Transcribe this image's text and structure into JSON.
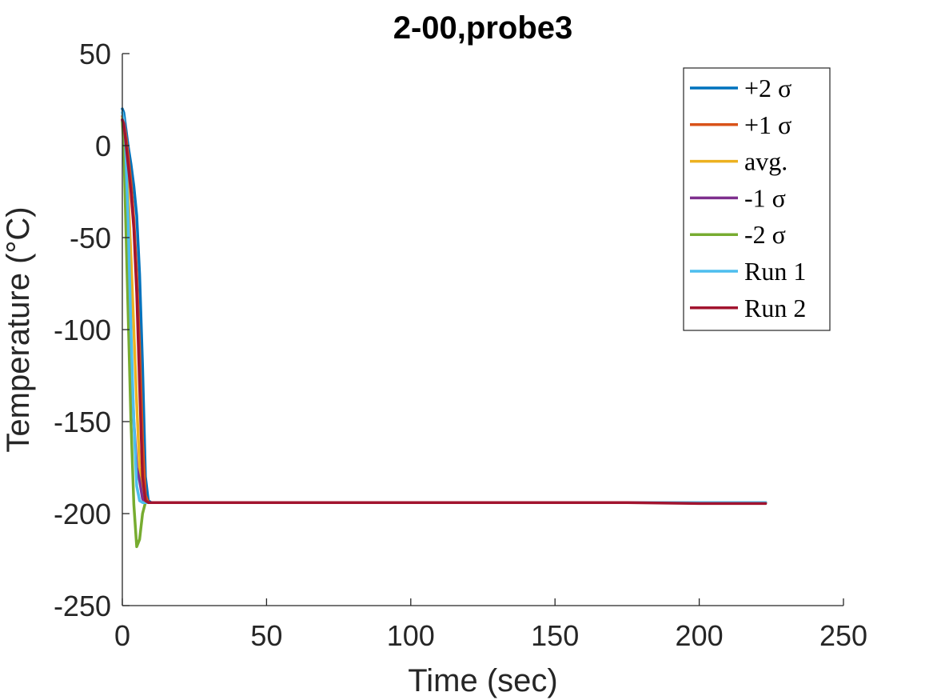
{
  "chart_data": {
    "type": "line",
    "title": "2-00,probe3",
    "xlabel": "Time (sec)",
    "ylabel": "Temperature (°C)",
    "xlim": [
      0,
      250
    ],
    "ylim": [
      -250,
      50
    ],
    "xticks": [
      0,
      50,
      100,
      150,
      200,
      250
    ],
    "yticks": [
      -250,
      -200,
      -150,
      -100,
      -50,
      0,
      50
    ],
    "grid": false,
    "legend_placement": "top-right",
    "series": [
      {
        "name": "+2 σ",
        "color": "#0072BD",
        "x": [
          0,
          0.5,
          1,
          2,
          3,
          4,
          5,
          6,
          7,
          8,
          9,
          10,
          20,
          50,
          100,
          150,
          200,
          223
        ],
        "y": [
          20,
          18,
          12,
          0,
          -10,
          -22,
          -38,
          -70,
          -120,
          -180,
          -193,
          -194,
          -194,
          -194,
          -194,
          -194,
          -194,
          -194
        ]
      },
      {
        "name": "+1 σ",
        "color": "#D95319",
        "x": [
          0,
          0.5,
          1,
          2,
          3,
          4,
          5,
          6,
          7,
          8,
          9,
          10,
          20,
          50,
          100,
          150,
          200,
          223
        ],
        "y": [
          16,
          14,
          8,
          -5,
          -20,
          -40,
          -70,
          -110,
          -160,
          -190,
          -194,
          -194,
          -194,
          -194,
          -194,
          -194,
          -194,
          -194
        ]
      },
      {
        "name": "avg.",
        "color": "#EDB120",
        "x": [
          0,
          0.5,
          1,
          2,
          3,
          4,
          5,
          6,
          7,
          8,
          9,
          10,
          20,
          50,
          100,
          150,
          200,
          223
        ],
        "y": [
          15,
          10,
          0,
          -25,
          -60,
          -100,
          -140,
          -175,
          -190,
          -194,
          -194,
          -194,
          -194,
          -194,
          -194,
          -194,
          -194,
          -194
        ]
      },
      {
        "name": "-1 σ",
        "color": "#7E2F8E",
        "x": [
          0,
          0.5,
          1,
          2,
          3,
          4,
          5,
          6,
          7,
          8,
          9,
          10,
          20,
          50,
          100,
          150,
          200,
          223
        ],
        "y": [
          14,
          5,
          -15,
          -60,
          -110,
          -150,
          -175,
          -182,
          -192,
          -194,
          -194,
          -194,
          -194,
          -194,
          -194,
          -194,
          -194,
          -194
        ]
      },
      {
        "name": "-2 σ",
        "color": "#77AC30",
        "x": [
          0,
          0.5,
          1,
          2,
          3,
          4,
          5,
          6,
          7,
          8,
          9,
          10,
          20,
          50,
          100,
          150,
          200,
          223
        ],
        "y": [
          13,
          0,
          -30,
          -90,
          -150,
          -195,
          -218,
          -214,
          -200,
          -194,
          -194,
          -194,
          -194,
          -194,
          -194,
          -194,
          -194,
          -194
        ]
      },
      {
        "name": "Run 1",
        "color": "#4DBEEE",
        "x": [
          0,
          0.5,
          1,
          2,
          3,
          4,
          5,
          6,
          7,
          8,
          9,
          10,
          20,
          50,
          100,
          150,
          200,
          223
        ],
        "y": [
          18,
          14,
          5,
          -40,
          -100,
          -150,
          -185,
          -193,
          -194,
          -194,
          -194,
          -194,
          -194,
          -194,
          -194,
          -194,
          -194,
          -194
        ]
      },
      {
        "name": "Run 2",
        "color": "#A2142F",
        "x": [
          0,
          0.5,
          1,
          2,
          3,
          4,
          5,
          6,
          7,
          8,
          9,
          10,
          20,
          50,
          100,
          150,
          175,
          200,
          223
        ],
        "y": [
          14,
          12,
          5,
          -10,
          -25,
          -45,
          -80,
          -130,
          -180,
          -193,
          -194,
          -194,
          -194,
          -194,
          -194,
          -194,
          -194,
          -194.5,
          -194.5
        ]
      }
    ]
  }
}
